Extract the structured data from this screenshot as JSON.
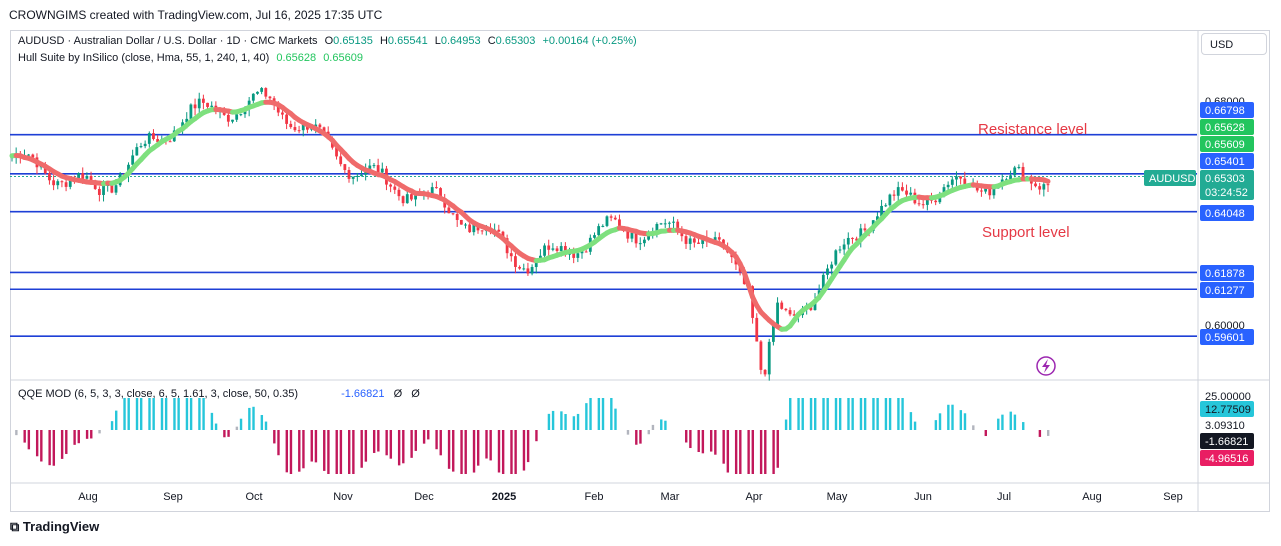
{
  "header": {
    "credit": "CROWNGIMS created with TradingView.com, Jul 16, 2025 17:35 UTC"
  },
  "legend": {
    "symbol": "AUDUSD · Australian Dollar / U.S. Dollar · 1D · CMC Markets",
    "o_label": "O",
    "o_value": "0.65135",
    "h_label": "H",
    "h_value": "0.65541",
    "l_label": "L",
    "l_value": "0.64953",
    "c_label": "C",
    "c_value": "0.65303",
    "change": "+0.00164 (+0.25%)",
    "hull": "Hull Suite by InSilico (close, Hma, 55, 1, 240, 1, 40)",
    "hull_v1": "0.65628",
    "hull_v2": "0.65609",
    "qqe": "QQE MOD (6, 5, 3, 3, close, 6, 5, 1.61, 3, close, 50, 0.35)",
    "qqe_value": "-1.66821",
    "eye1": "Ø",
    "eye2": "Ø"
  },
  "currency_button": "USD",
  "brand": "TradingView",
  "chart_data": {
    "type": "candlestick",
    "symbol": "AUDUSD",
    "timeframe": "1D",
    "x_ticks": [
      "Aug",
      "Sep",
      "Oct",
      "Nov",
      "Dec",
      "2025",
      "Feb",
      "Mar",
      "Apr",
      "May",
      "Jun",
      "Jul",
      "Aug",
      "Sep"
    ],
    "y_axis_ticks": [
      "0.68000",
      "0.60000"
    ],
    "price_labels": [
      {
        "value": "0.66798",
        "color": "#2962ff"
      },
      {
        "value": "0.65628",
        "color": "#22c55e"
      },
      {
        "value": "0.65609",
        "color": "#22c55e"
      },
      {
        "value": "0.65401",
        "color": "#2962ff"
      },
      {
        "value": "0.64048",
        "color": "#2962ff"
      },
      {
        "value": "0.61878",
        "color": "#2962ff"
      },
      {
        "value": "0.61277",
        "color": "#2962ff"
      },
      {
        "value": "0.59601",
        "color": "#2962ff"
      }
    ],
    "current_price": {
      "symbol": "AUDUSD",
      "value": "0.65303",
      "countdown": "03:24:52",
      "color": "#22ab94"
    },
    "horizontal_levels": [
      0.66798,
      0.65401,
      0.64048,
      0.61878,
      0.61277,
      0.59601
    ],
    "annotations": [
      {
        "text": "Resistance level",
        "color": "#e53945"
      },
      {
        "text": "Support level",
        "color": "#e53945"
      }
    ],
    "close_series_approx": [
      {
        "month": "Jul",
        "close": 0.66
      },
      {
        "month": "Aug",
        "close": 0.648
      },
      {
        "month": "Sep",
        "close": 0.675
      },
      {
        "month": "Oct",
        "close": 0.68
      },
      {
        "month": "Nov",
        "close": 0.655
      },
      {
        "month": "Dec",
        "close": 0.643
      },
      {
        "month": "Jan",
        "close": 0.622
      },
      {
        "month": "Feb",
        "close": 0.635
      },
      {
        "month": "Mar",
        "close": 0.632
      },
      {
        "month": "Apr",
        "close": 0.6
      },
      {
        "month": "May",
        "close": 0.642
      },
      {
        "month": "Jun",
        "close": 0.65
      },
      {
        "month": "Jul",
        "close": 0.653
      }
    ],
    "qqe_panel": {
      "axis_labels": [
        {
          "value": "25.00000",
          "color": "#131722",
          "bg": ""
        },
        {
          "value": "12.77509",
          "color": "#131722",
          "bg": "#26c6da"
        },
        {
          "value": "3.09310",
          "color": "#131722",
          "bg": ""
        },
        {
          "value": "-1.66821",
          "color": "#ffffff",
          "bg": "#131722"
        },
        {
          "value": "-4.96516",
          "color": "#ffffff",
          "bg": "#e91e63"
        }
      ],
      "colors": {
        "positive": "#26c6da",
        "negative": "#c2185b",
        "neutral": "#b2b5be"
      }
    }
  }
}
